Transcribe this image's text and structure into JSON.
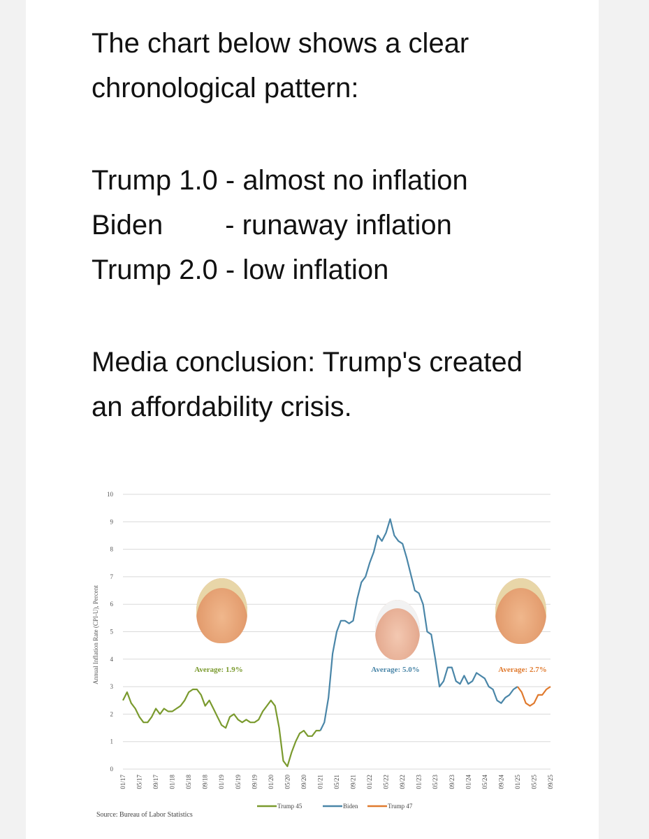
{
  "post": {
    "line1": "The chart below shows a clear",
    "line2": "chronological pattern:",
    "trump1": "Trump 1.0 - almost no inflation",
    "biden": "Biden        - runaway inflation",
    "trump2": "Trump 2.0 - low inflation",
    "media1": "Media conclusion: Trump's created",
    "media2": "an affordability crisis."
  },
  "colors": {
    "trump45": "#7a9a2e",
    "biden": "#4a86a8",
    "trump47": "#e07a2e",
    "grid": "#d9d9d9"
  },
  "chart_data": {
    "type": "line",
    "title": "",
    "ylabel": "Annual Inflation Rate (CPI-U), Percent",
    "xlabel": "",
    "ylim": [
      0,
      10
    ],
    "yticks": [
      0,
      1,
      2,
      3,
      4,
      5,
      6,
      7,
      8,
      9,
      10
    ],
    "xtick_labels": [
      "01/17",
      "05/17",
      "09/17",
      "01/18",
      "05/18",
      "09/18",
      "01/19",
      "05/19",
      "09/19",
      "01/20",
      "05/20",
      "09/20",
      "01/21",
      "05/21",
      "09/21",
      "01/22",
      "05/22",
      "09/22",
      "01/23",
      "05/23",
      "09/23",
      "01/24",
      "05/24",
      "09/24",
      "01/25",
      "05/25",
      "09/25"
    ],
    "series": [
      {
        "name": "Trump 45",
        "start": "01/17",
        "values": [
          2.5,
          2.8,
          2.4,
          2.2,
          1.9,
          1.7,
          1.7,
          1.9,
          2.2,
          2.0,
          2.2,
          2.1,
          2.1,
          2.2,
          2.3,
          2.5,
          2.8,
          2.9,
          2.9,
          2.7,
          2.3,
          2.5,
          2.2,
          1.9,
          1.6,
          1.5,
          1.9,
          2.0,
          1.8,
          1.7,
          1.8,
          1.7,
          1.7,
          1.8,
          2.1,
          2.3,
          2.5,
          2.3,
          1.5,
          0.3,
          0.1,
          0.6,
          1.0,
          1.3,
          1.4,
          1.2,
          1.2,
          1.4,
          1.4
        ]
      },
      {
        "name": "Biden",
        "start": "01/21",
        "values": [
          1.4,
          1.7,
          2.6,
          4.2,
          5.0,
          5.4,
          5.4,
          5.3,
          5.4,
          6.2,
          6.8,
          7.0,
          7.5,
          7.9,
          8.5,
          8.3,
          8.6,
          9.1,
          8.5,
          8.3,
          8.2,
          7.7,
          7.1,
          6.5,
          6.4,
          6.0,
          5.0,
          4.9,
          4.0,
          3.0,
          3.2,
          3.7,
          3.7,
          3.2,
          3.1,
          3.4,
          3.1,
          3.2,
          3.5,
          3.4,
          3.3,
          3.0,
          2.9,
          2.5,
          2.4,
          2.6,
          2.7,
          2.9,
          3.0
        ]
      },
      {
        "name": "Trump 47",
        "start": "01/25",
        "values": [
          3.0,
          2.8,
          2.4,
          2.3,
          2.4,
          2.7,
          2.7,
          2.9,
          3.0
        ]
      }
    ],
    "annotations": [
      {
        "text": "Average: 1.9%",
        "series": "Trump 45"
      },
      {
        "text": "Average: 5.0%",
        "series": "Biden"
      },
      {
        "text": "Average: 2.7%",
        "series": "Trump 47"
      }
    ],
    "legend": [
      "Trump 45",
      "Biden",
      "Trump 47"
    ],
    "legend_position": "bottom-center",
    "source": "Source: Bureau of Labor Statistics"
  }
}
